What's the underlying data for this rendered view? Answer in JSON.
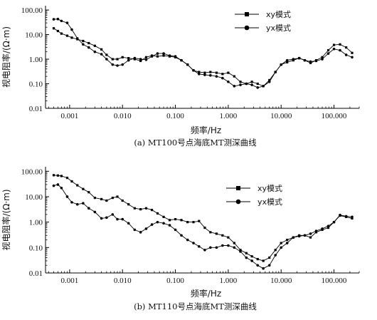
{
  "chart_data": [
    {
      "type": "line",
      "caption": "(a) MT100号点海底MT测深曲线",
      "xlabel": "频率/Hz",
      "ylabel": "视电阻率/(Ω·m)",
      "x_scale": "log",
      "y_scale": "log",
      "xlim": [
        0.00035,
        300
      ],
      "ylim": [
        0.01,
        150
      ],
      "x_ticks": [
        0.001,
        0.01,
        0.1,
        1,
        10,
        100
      ],
      "x_tick_labels": [
        "0.001",
        "0.010",
        "0.100",
        "1.000",
        "10.000",
        "100.000"
      ],
      "y_ticks": [
        0.01,
        0.1,
        1,
        10,
        100
      ],
      "y_tick_labels": [
        "0.01",
        "0.10",
        "1.00",
        "10.00",
        "100.00"
      ],
      "legend_position": "top-right",
      "series": [
        {
          "name": "xy模式",
          "marker": "square",
          "x": [
            0.0005,
            0.0006,
            0.0007,
            0.0009,
            0.0011,
            0.0014,
            0.0018,
            0.0023,
            0.003,
            0.004,
            0.005,
            0.0065,
            0.008,
            0.01,
            0.013,
            0.017,
            0.022,
            0.028,
            0.036,
            0.046,
            0.06,
            0.078,
            0.1,
            0.13,
            0.17,
            0.22,
            0.28,
            0.36,
            0.46,
            0.6,
            0.78,
            1.0,
            1.3,
            1.7,
            2.2,
            2.8,
            3.6,
            4.6,
            6.0,
            7.8,
            10,
            13,
            17,
            22,
            28,
            36,
            46,
            60,
            78,
            100,
            130,
            170,
            220
          ],
          "y": [
            18,
            14,
            11,
            9,
            7.5,
            6.5,
            5.5,
            4.5,
            3.5,
            2.5,
            1.5,
            1.0,
            1.0,
            1.2,
            1.1,
            1.0,
            0.85,
            1.2,
            1.4,
            1.3,
            1.4,
            1.3,
            1.2,
            0.9,
            0.6,
            0.35,
            0.3,
            0.28,
            0.3,
            0.28,
            0.25,
            0.28,
            0.2,
            0.12,
            0.1,
            0.12,
            0.1,
            0.08,
            0.14,
            0.3,
            0.6,
            0.75,
            0.9,
            1.1,
            0.9,
            0.7,
            0.9,
            1.2,
            2.3,
            3.8,
            4.0,
            3.0,
            1.8
          ]
        },
        {
          "name": "yx模式",
          "marker": "circle",
          "x": [
            0.0005,
            0.0006,
            0.0007,
            0.0009,
            0.0011,
            0.0014,
            0.0018,
            0.0023,
            0.003,
            0.004,
            0.005,
            0.0065,
            0.008,
            0.01,
            0.013,
            0.017,
            0.022,
            0.028,
            0.036,
            0.046,
            0.06,
            0.078,
            0.1,
            0.13,
            0.17,
            0.22,
            0.28,
            0.36,
            0.46,
            0.6,
            0.78,
            1.0,
            1.3,
            1.7,
            2.2,
            2.8,
            3.6,
            4.6,
            6.0,
            7.8,
            10,
            13,
            17,
            22,
            28,
            36,
            46,
            60,
            78,
            100,
            130,
            170,
            220
          ],
          "y": [
            42,
            43,
            36,
            30,
            16,
            7,
            4,
            3,
            2,
            1.6,
            1.0,
            0.6,
            0.55,
            0.6,
            0.9,
            1.1,
            1.0,
            0.95,
            1.3,
            1.7,
            1.7,
            1.4,
            1.3,
            0.9,
            0.6,
            0.35,
            0.25,
            0.23,
            0.22,
            0.2,
            0.17,
            0.12,
            0.08,
            0.09,
            0.1,
            0.09,
            0.07,
            0.08,
            0.12,
            0.3,
            0.6,
            0.9,
            1.0,
            1.1,
            0.9,
            0.8,
            0.85,
            1.0,
            1.7,
            2.6,
            2.3,
            1.5,
            1.2
          ]
        }
      ]
    },
    {
      "type": "line",
      "caption": "(b) MT110号点海底MT测深曲线",
      "xlabel": "频率/Hz",
      "ylabel": "视电阻率/(Ω·m)",
      "x_scale": "log",
      "y_scale": "log",
      "xlim": [
        0.00035,
        300
      ],
      "ylim": [
        0.01,
        150
      ],
      "x_ticks": [
        0.001,
        0.01,
        0.1,
        1,
        10,
        100
      ],
      "x_tick_labels": [
        "0.001",
        "0.010",
        "0.100",
        "1.000",
        "10.000",
        "100.000"
      ],
      "y_ticks": [
        0.01,
        0.1,
        1,
        10,
        100
      ],
      "y_tick_labels": [
        "0.01",
        "0.10",
        "1.00",
        "10.00",
        "100.00"
      ],
      "legend_position": "right-center",
      "series": [
        {
          "name": "xy模式",
          "marker": "square",
          "x": [
            0.0005,
            0.0006,
            0.0007,
            0.0009,
            0.0011,
            0.0014,
            0.0018,
            0.0023,
            0.003,
            0.004,
            0.005,
            0.0065,
            0.008,
            0.01,
            0.013,
            0.017,
            0.022,
            0.028,
            0.036,
            0.046,
            0.06,
            0.078,
            0.1,
            0.13,
            0.17,
            0.22,
            0.28,
            0.36,
            0.46,
            0.6,
            0.78,
            1.0,
            1.3,
            1.7,
            2.2,
            2.8,
            3.6,
            4.6,
            6.0,
            7.8,
            10,
            13,
            17,
            22,
            28,
            36,
            46,
            60,
            78,
            100,
            130,
            170,
            220
          ],
          "y": [
            70,
            68,
            65,
            55,
            40,
            28,
            20,
            15,
            9,
            8,
            7,
            9,
            10,
            7,
            5,
            3.5,
            3.2,
            3.5,
            3.0,
            2.2,
            1.6,
            1.2,
            1.3,
            1.2,
            1.0,
            1.0,
            1.1,
            0.6,
            0.4,
            0.35,
            0.3,
            0.25,
            0.15,
            0.08,
            0.06,
            0.045,
            0.035,
            0.03,
            0.04,
            0.08,
            0.15,
            0.2,
            0.25,
            0.3,
            0.3,
            0.25,
            0.4,
            0.5,
            0.6,
            1.0,
            1.8,
            1.6,
            1.4
          ]
        },
        {
          "name": "yx模式",
          "marker": "circle",
          "x": [
            0.0005,
            0.0006,
            0.0007,
            0.0009,
            0.0011,
            0.0014,
            0.0018,
            0.0023,
            0.003,
            0.004,
            0.005,
            0.0065,
            0.008,
            0.01,
            0.013,
            0.017,
            0.022,
            0.028,
            0.036,
            0.046,
            0.06,
            0.078,
            0.1,
            0.13,
            0.17,
            0.22,
            0.28,
            0.36,
            0.46,
            0.6,
            0.78,
            1.0,
            1.3,
            1.7,
            2.2,
            2.8,
            3.6,
            4.6,
            6.0,
            7.8,
            10,
            13,
            17,
            22,
            28,
            36,
            46,
            60,
            78,
            100,
            130,
            170,
            220
          ],
          "y": [
            27,
            30,
            22,
            10,
            6,
            5,
            5.5,
            3.5,
            2.5,
            1.4,
            1.5,
            2.0,
            1.3,
            1.3,
            0.9,
            0.5,
            0.4,
            0.55,
            0.8,
            1.0,
            0.9,
            0.75,
            0.5,
            0.3,
            0.2,
            0.15,
            0.11,
            0.08,
            0.1,
            0.1,
            0.12,
            0.12,
            0.1,
            0.07,
            0.04,
            0.03,
            0.02,
            0.015,
            0.02,
            0.05,
            0.1,
            0.15,
            0.25,
            0.28,
            0.3,
            0.35,
            0.45,
            0.55,
            0.7,
            1.0,
            1.9,
            1.7,
            1.6
          ]
        }
      ]
    }
  ]
}
